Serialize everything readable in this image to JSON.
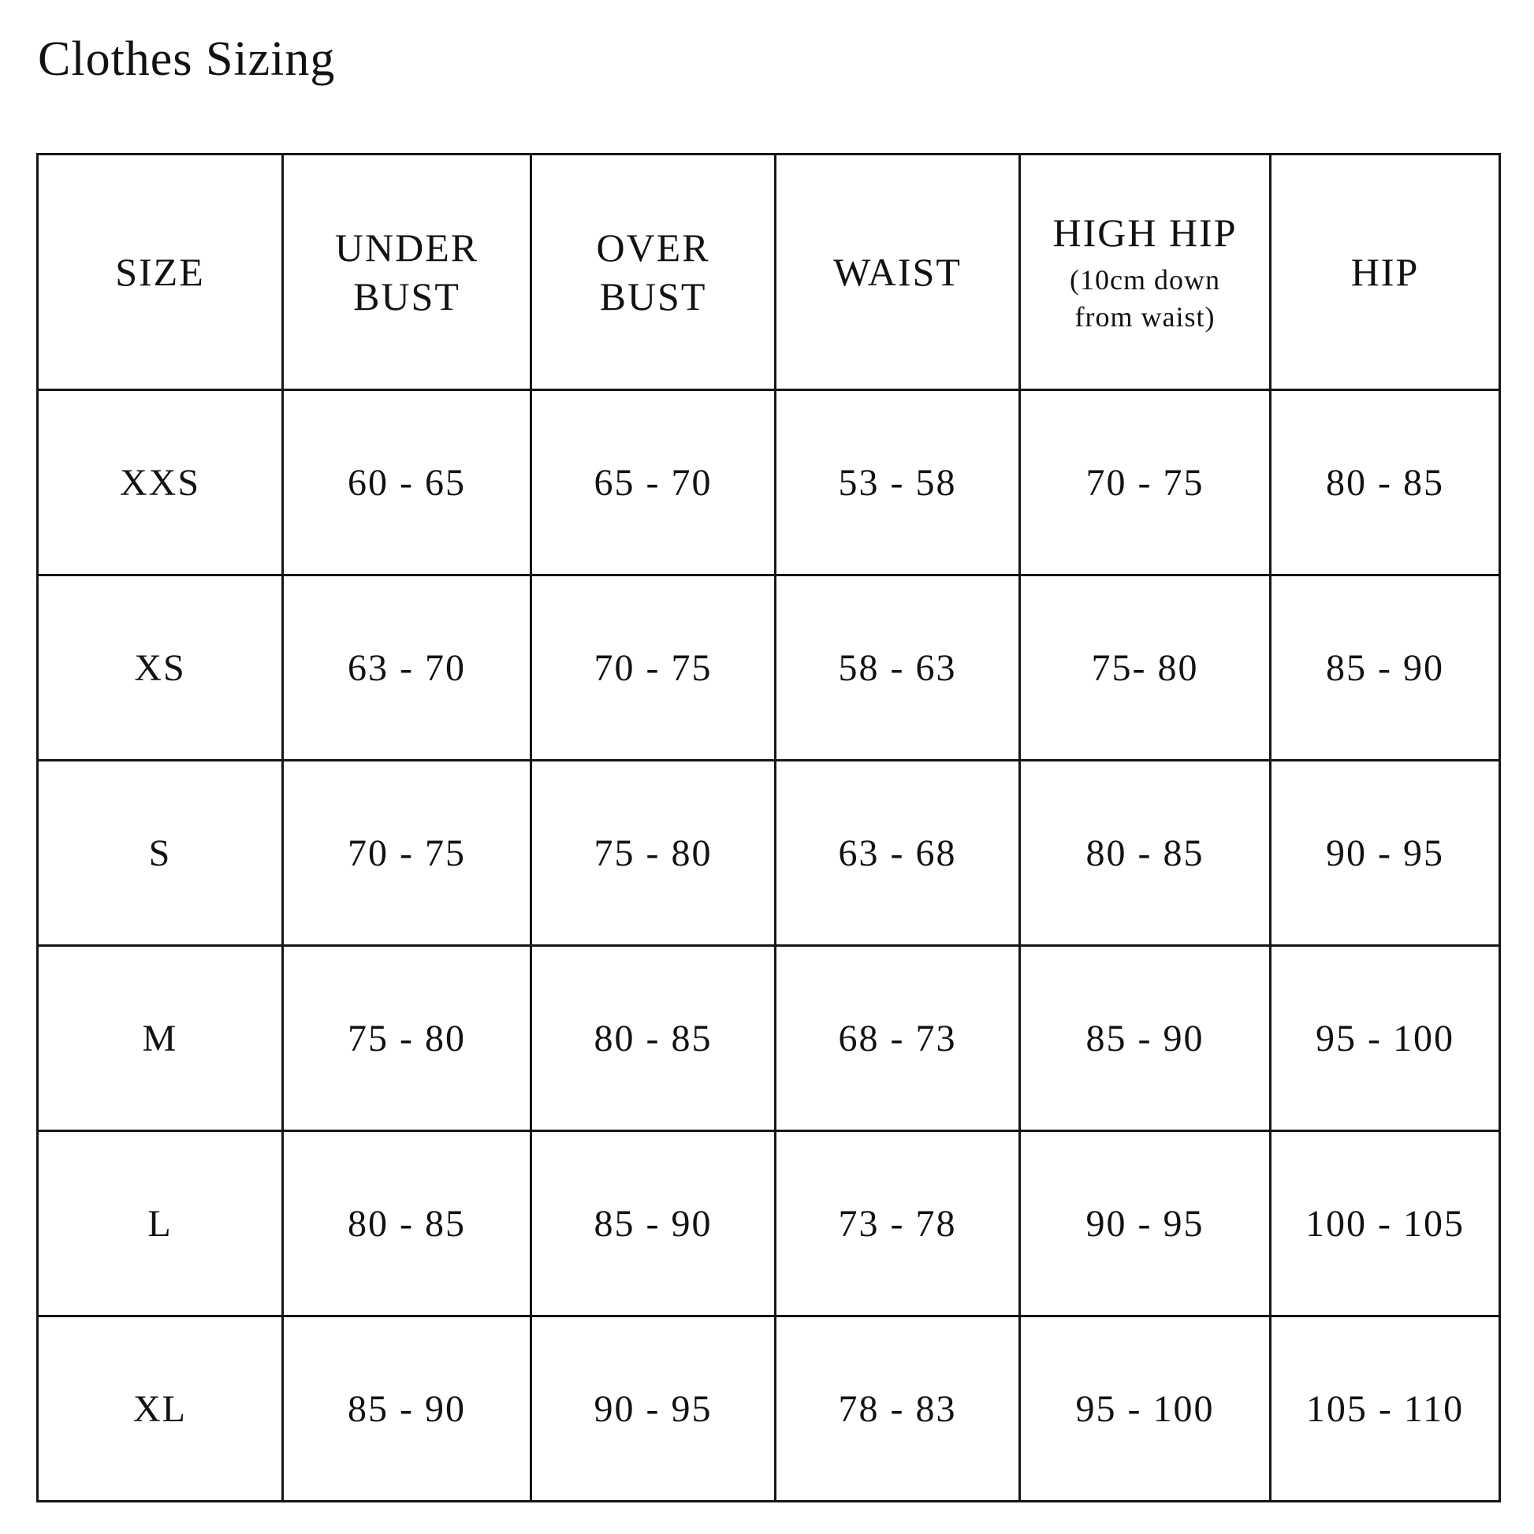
{
  "page": {
    "title": "Clothes Sizing",
    "background_color": "#ffffff",
    "text_color": "#121212",
    "line_color": "#161616"
  },
  "table": {
    "columns": [
      {
        "key": "size",
        "label": "SIZE",
        "note": ""
      },
      {
        "key": "under_bust",
        "label": "UNDER\nBUST",
        "note": ""
      },
      {
        "key": "over_bust",
        "label": "OVER\nBUST",
        "note": ""
      },
      {
        "key": "waist",
        "label": "WAIST",
        "note": ""
      },
      {
        "key": "high_hip",
        "label": "HIGH HIP",
        "note": "(10cm down\nfrom waist)"
      },
      {
        "key": "hip",
        "label": "HIP",
        "note": ""
      }
    ],
    "rows": [
      {
        "size": "XXS",
        "under_bust": "60 - 65",
        "over_bust": "65 - 70",
        "waist": "53 - 58",
        "high_hip": "70 - 75",
        "hip": "80 - 85"
      },
      {
        "size": "XS",
        "under_bust": "63 - 70",
        "over_bust": "70 - 75",
        "waist": "58 - 63",
        "high_hip": "75- 80",
        "hip": "85 - 90"
      },
      {
        "size": "S",
        "under_bust": "70 - 75",
        "over_bust": "75 - 80",
        "waist": "63 - 68",
        "high_hip": "80 - 85",
        "hip": "90 - 95"
      },
      {
        "size": "M",
        "under_bust": "75 - 80",
        "over_bust": "80 - 85",
        "waist": "68 - 73",
        "high_hip": "85 - 90",
        "hip": "95 - 100"
      },
      {
        "size": "L",
        "under_bust": "80 - 85",
        "over_bust": "85 - 90",
        "waist": "73 - 78",
        "high_hip": "90 - 95",
        "hip": "100 - 105"
      },
      {
        "size": "XL",
        "under_bust": "85 - 90",
        "over_bust": "90 - 95",
        "waist": "78 - 83",
        "high_hip": "95 - 100",
        "hip": "105 - 110"
      }
    ]
  }
}
